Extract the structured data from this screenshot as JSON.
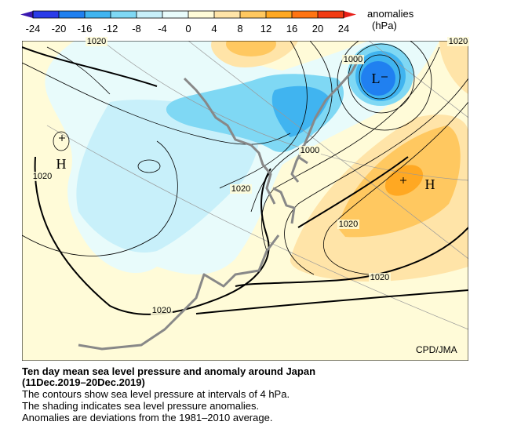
{
  "colorbar": {
    "ticks": [
      -24,
      -20,
      -16,
      -12,
      -8,
      -4,
      0,
      4,
      8,
      12,
      16,
      20,
      24
    ],
    "colors": [
      "#2a3ce8",
      "#2080f0",
      "#40b4f0",
      "#7fd8f4",
      "#c8f0fa",
      "#e8fbfb",
      "#fffbd8",
      "#ffe4a8",
      "#ffc860",
      "#ffa822",
      "#ff7412",
      "#f23c14"
    ],
    "under_color": "#3a18b0",
    "over_color": "#e8201a",
    "title": "anomalies",
    "unit": "(hPa)"
  },
  "map": {
    "contour_labels": [
      "1020",
      "1020",
      "1000",
      "1000",
      "1020",
      "1020",
      "1020",
      "1020",
      "1020"
    ],
    "pressure_centers": [
      "L",
      "H",
      "H"
    ],
    "credit": "CPD/JMA"
  },
  "caption": {
    "title": "Ten day mean sea level pressure and anomaly around Japan",
    "period": "(11Dec.2019–20Dec.2019)",
    "lines": [
      "The contours show sea level pressure at intervals of 4 hPa.",
      "The shading indicates sea level pressure anomalies.",
      "Anomalies are deviations from the 1981–2010 average."
    ]
  }
}
